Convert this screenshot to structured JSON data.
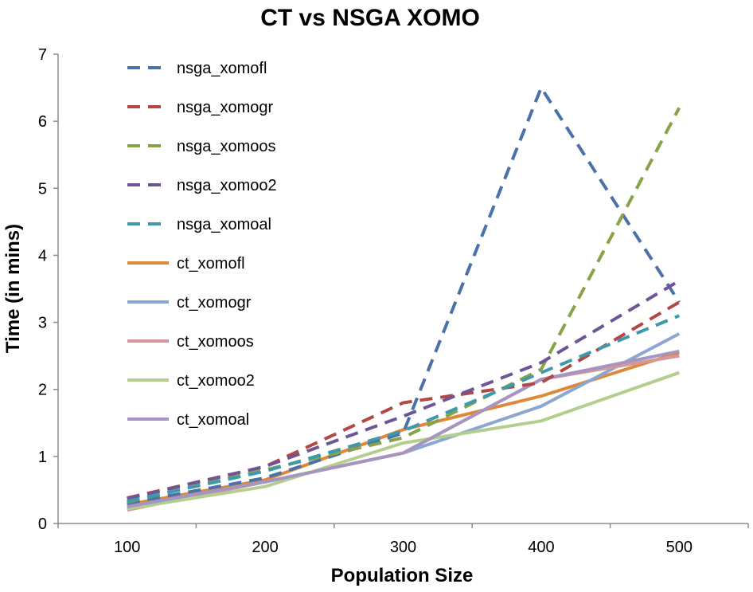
{
  "chart_data": {
    "type": "line",
    "title": "CT vs NSGA XOMO",
    "xlabel": "Population Size",
    "ylabel": "Time (in mins)",
    "categories": [
      "100",
      "200",
      "300",
      "400",
      "500"
    ],
    "ylim": [
      0,
      7
    ],
    "yticks": [
      "0",
      "1",
      "2",
      "3",
      "4",
      "5",
      "6",
      "7"
    ],
    "grid": false,
    "legend_position": "top-left",
    "series": [
      {
        "name": "nsga_xomofl",
        "values": [
          0.3,
          0.68,
          1.35,
          6.5,
          3.3
        ],
        "color": "#4a72a8",
        "style": "dashed"
      },
      {
        "name": "nsga_xomogr",
        "values": [
          0.38,
          0.85,
          1.8,
          2.1,
          3.3
        ],
        "color": "#b24745",
        "style": "dashed"
      },
      {
        "name": "nsga_xomoos",
        "values": [
          0.32,
          0.8,
          1.28,
          2.3,
          6.2
        ],
        "color": "#87a347",
        "style": "dashed"
      },
      {
        "name": "nsga_xomoo2",
        "values": [
          0.37,
          0.85,
          1.6,
          2.4,
          3.62
        ],
        "color": "#6e5696",
        "style": "dashed"
      },
      {
        "name": "nsga_xomoal",
        "values": [
          0.33,
          0.78,
          1.38,
          2.25,
          3.1
        ],
        "color": "#3d9aab",
        "style": "dashed"
      },
      {
        "name": "ct_xomofl",
        "values": [
          0.28,
          0.65,
          1.4,
          1.9,
          2.55
        ],
        "color": "#e0883a",
        "style": "solid"
      },
      {
        "name": "ct_xomogr",
        "values": [
          0.25,
          0.62,
          1.05,
          1.75,
          2.83
        ],
        "color": "#8ba6d1",
        "style": "solid"
      },
      {
        "name": "ct_xomoos",
        "values": [
          0.2,
          0.62,
          1.05,
          2.15,
          2.5
        ],
        "color": "#d69896",
        "style": "solid"
      },
      {
        "name": "ct_xomoo2",
        "values": [
          0.22,
          0.55,
          1.2,
          1.53,
          2.25
        ],
        "color": "#b3cf8e",
        "style": "solid"
      },
      {
        "name": "ct_xomoal",
        "values": [
          0.25,
          0.62,
          1.05,
          2.15,
          2.57
        ],
        "color": "#a595c3",
        "style": "solid"
      }
    ]
  }
}
